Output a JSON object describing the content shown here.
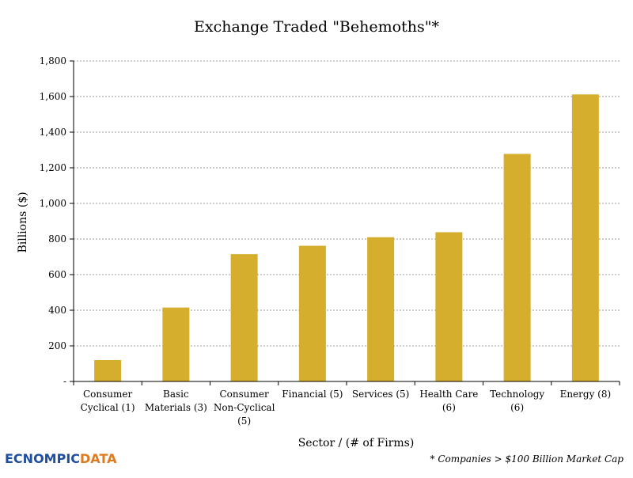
{
  "chart_data": {
    "type": "bar",
    "title": "Exchange Traded \"Behemoths\"*",
    "xlabel": "Sector / (# of Firms)",
    "ylabel": "Billions ($)",
    "ylim": [
      0,
      1800
    ],
    "yticks": [
      "-",
      "200",
      "400",
      "600",
      "800",
      "1,000",
      "1,200",
      "1,400",
      "1,600",
      "1,800"
    ],
    "grid": true,
    "categories": [
      [
        "Consumer",
        "Cyclical (1)"
      ],
      [
        "Basic",
        "Materials (3)"
      ],
      [
        "Consumer",
        "Non-Cyclical",
        "(5)"
      ],
      [
        "Financial (5)"
      ],
      [
        "Services (5)"
      ],
      [
        "Health Care",
        "(6)"
      ],
      [
        "Technology",
        "(6)"
      ],
      [
        "Energy (8)"
      ]
    ],
    "values": [
      120,
      415,
      715,
      762,
      810,
      838,
      1278,
      1612
    ],
    "bar_color": "#d4ae2c",
    "footnote": "* Companies > $100 Billion Market Cap"
  },
  "logo": {
    "part1": "EC",
    "part2": "NOMPIC",
    "part3": "DATA"
  }
}
